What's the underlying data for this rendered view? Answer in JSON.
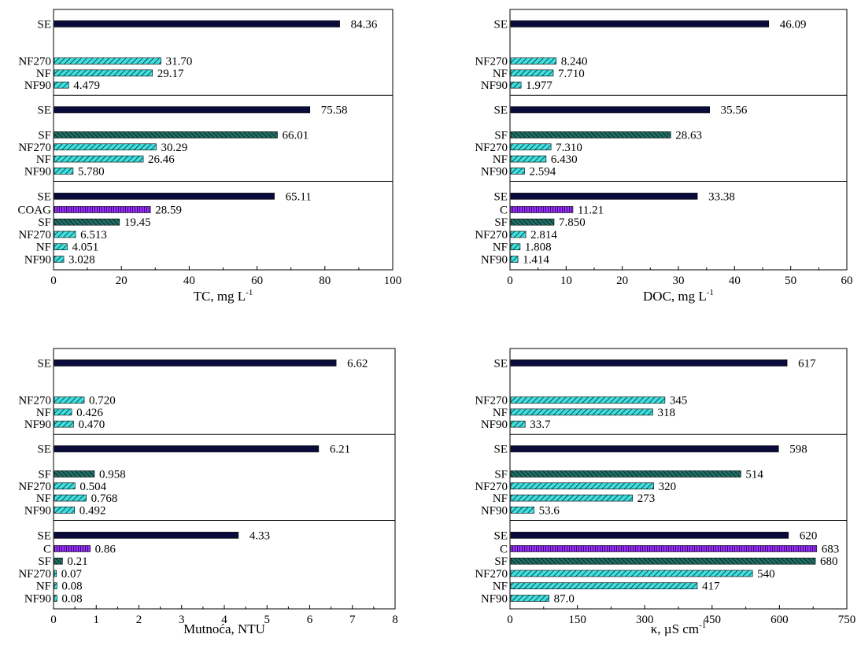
{
  "colors": {
    "SE": "#0b0b3b",
    "NF_fill": "#40e0e0",
    "SF_fill": "#1f6f66",
    "COAG_fill": "#9b30ff",
    "frame": "#000000"
  },
  "chart_data": [
    {
      "type": "bar",
      "orientation": "horizontal",
      "xlabel_main": "TC, mg L",
      "xlabel_sup": "-1",
      "xlim": [
        0,
        100
      ],
      "xticks": [
        "0",
        "20",
        "40",
        "60",
        "80",
        "100"
      ],
      "groups": [
        {
          "bars": [
            {
              "category": "SE",
              "value": 84.36,
              "label": "84.36",
              "style": "SE"
            },
            {
              "category": "NF270",
              "value": 31.7,
              "label": "31.70",
              "style": "NF"
            },
            {
              "category": "NF",
              "value": 29.17,
              "label": "29.17",
              "style": "NF"
            },
            {
              "category": "NF90",
              "value": 4.479,
              "label": "4.479",
              "style": "NF"
            }
          ]
        },
        {
          "bars": [
            {
              "category": "SE",
              "value": 75.58,
              "label": "75.58",
              "style": "SE"
            },
            {
              "category": "SF",
              "value": 66.01,
              "label": "66.01",
              "style": "SF"
            },
            {
              "category": "NF270",
              "value": 30.29,
              "label": "30.29",
              "style": "NF"
            },
            {
              "category": "NF",
              "value": 26.46,
              "label": "26.46",
              "style": "NF"
            },
            {
              "category": "NF90",
              "value": 5.78,
              "label": "5.780",
              "style": "NF"
            }
          ]
        },
        {
          "bars": [
            {
              "category": "SE",
              "value": 65.11,
              "label": "65.11",
              "style": "SE"
            },
            {
              "category": "COAG",
              "value": 28.59,
              "label": "28.59",
              "style": "COAG"
            },
            {
              "category": "SF",
              "value": 19.45,
              "label": "19.45",
              "style": "SF"
            },
            {
              "category": "NF270",
              "value": 6.513,
              "label": "6.513",
              "style": "NF"
            },
            {
              "category": "NF",
              "value": 4.051,
              "label": "4.051",
              "style": "NF"
            },
            {
              "category": "NF90",
              "value": 3.028,
              "label": "3.028",
              "style": "NF"
            }
          ]
        }
      ]
    },
    {
      "type": "bar",
      "orientation": "horizontal",
      "xlabel_main": "DOC, mg L",
      "xlabel_sup": "-1",
      "xlim": [
        0,
        60
      ],
      "xticks": [
        "0",
        "10",
        "20",
        "30",
        "40",
        "50",
        "60"
      ],
      "groups": [
        {
          "bars": [
            {
              "category": "SE",
              "value": 46.09,
              "label": "46.09",
              "style": "SE"
            },
            {
              "category": "NF270",
              "value": 8.24,
              "label": "8.240",
              "style": "NF"
            },
            {
              "category": "NF",
              "value": 7.71,
              "label": "7.710",
              "style": "NF"
            },
            {
              "category": "NF90",
              "value": 1.977,
              "label": "1.977",
              "style": "NF"
            }
          ]
        },
        {
          "bars": [
            {
              "category": "SE",
              "value": 35.56,
              "label": "35.56",
              "style": "SE"
            },
            {
              "category": "SF",
              "value": 28.63,
              "label": "28.63",
              "style": "SF"
            },
            {
              "category": "NF270",
              "value": 7.31,
              "label": "7.310",
              "style": "NF"
            },
            {
              "category": "NF",
              "value": 6.43,
              "label": "6.430",
              "style": "NF"
            },
            {
              "category": "NF90",
              "value": 2.594,
              "label": "2.594",
              "style": "NF"
            }
          ]
        },
        {
          "bars": [
            {
              "category": "SE",
              "value": 33.38,
              "label": "33.38",
              "style": "SE"
            },
            {
              "category": "C",
              "value": 11.21,
              "label": "11.21",
              "style": "COAG"
            },
            {
              "category": "SF",
              "value": 7.85,
              "label": "7.850",
              "style": "SF"
            },
            {
              "category": "NF270",
              "value": 2.814,
              "label": "2.814",
              "style": "NF"
            },
            {
              "category": "NF",
              "value": 1.808,
              "label": "1.808",
              "style": "NF"
            },
            {
              "category": "NF90",
              "value": 1.414,
              "label": "1.414",
              "style": "NF"
            }
          ]
        }
      ]
    },
    {
      "type": "bar",
      "orientation": "horizontal",
      "xlabel_main": "Mutnoća, NTU",
      "xlabel_sup": "",
      "xlim": [
        0,
        8
      ],
      "xticks": [
        "0",
        "1",
        "2",
        "3",
        "4",
        "5",
        "6",
        "7",
        "8"
      ],
      "groups": [
        {
          "bars": [
            {
              "category": "SE",
              "value": 6.62,
              "label": "6.62",
              "style": "SE"
            },
            {
              "category": "NF270",
              "value": 0.72,
              "label": "0.720",
              "style": "NF"
            },
            {
              "category": "NF",
              "value": 0.426,
              "label": "0.426",
              "style": "NF"
            },
            {
              "category": "NF90",
              "value": 0.47,
              "label": "0.470",
              "style": "NF"
            }
          ]
        },
        {
          "bars": [
            {
              "category": "SE",
              "value": 6.21,
              "label": "6.21",
              "style": "SE"
            },
            {
              "category": "SF",
              "value": 0.958,
              "label": "0.958",
              "style": "SF"
            },
            {
              "category": "NF270",
              "value": 0.504,
              "label": "0.504",
              "style": "NF"
            },
            {
              "category": "NF",
              "value": 0.768,
              "label": "0.768",
              "style": "NF"
            },
            {
              "category": "NF90",
              "value": 0.492,
              "label": "0.492",
              "style": "NF"
            }
          ]
        },
        {
          "bars": [
            {
              "category": "SE",
              "value": 4.33,
              "label": "4.33",
              "style": "SE"
            },
            {
              "category": "C",
              "value": 0.86,
              "label": "0.86",
              "style": "COAG"
            },
            {
              "category": "SF",
              "value": 0.21,
              "label": "0.21",
              "style": "SF"
            },
            {
              "category": "NF270",
              "value": 0.07,
              "label": "0.07",
              "style": "NF"
            },
            {
              "category": "NF",
              "value": 0.08,
              "label": "0.08",
              "style": "NF"
            },
            {
              "category": "NF90",
              "value": 0.08,
              "label": "0.08",
              "style": "NF"
            }
          ]
        }
      ]
    },
    {
      "type": "bar",
      "orientation": "horizontal",
      "xlabel_main": "κ, µS cm",
      "xlabel_sup": "-1",
      "xlim": [
        0,
        750
      ],
      "xticks": [
        "0",
        "150",
        "300",
        "450",
        "600",
        "750"
      ],
      "groups": [
        {
          "bars": [
            {
              "category": "SE",
              "value": 617,
              "label": "617",
              "style": "SE"
            },
            {
              "category": "NF270",
              "value": 345,
              "label": "345",
              "style": "NF"
            },
            {
              "category": "NF",
              "value": 318,
              "label": "318",
              "style": "NF"
            },
            {
              "category": "NF90",
              "value": 33.7,
              "label": "33.7",
              "style": "NF"
            }
          ]
        },
        {
          "bars": [
            {
              "category": "SE",
              "value": 598,
              "label": "598",
              "style": "SE"
            },
            {
              "category": "SF",
              "value": 514,
              "label": "514",
              "style": "SF"
            },
            {
              "category": "NF270",
              "value": 320,
              "label": "320",
              "style": "NF"
            },
            {
              "category": "NF",
              "value": 273,
              "label": "273",
              "style": "NF"
            },
            {
              "category": "NF90",
              "value": 53.6,
              "label": "53.6",
              "style": "NF"
            }
          ]
        },
        {
          "bars": [
            {
              "category": "SE",
              "value": 620,
              "label": "620",
              "style": "SE"
            },
            {
              "category": "C",
              "value": 683,
              "label": "683",
              "style": "COAG"
            },
            {
              "category": "SF",
              "value": 680,
              "label": "680",
              "style": "SF"
            },
            {
              "category": "NF270",
              "value": 540,
              "label": "540",
              "style": "NF"
            },
            {
              "category": "NF",
              "value": 417,
              "label": "417",
              "style": "NF"
            },
            {
              "category": "NF90",
              "value": 87.0,
              "label": "87.0",
              "style": "NF"
            }
          ]
        }
      ]
    }
  ]
}
